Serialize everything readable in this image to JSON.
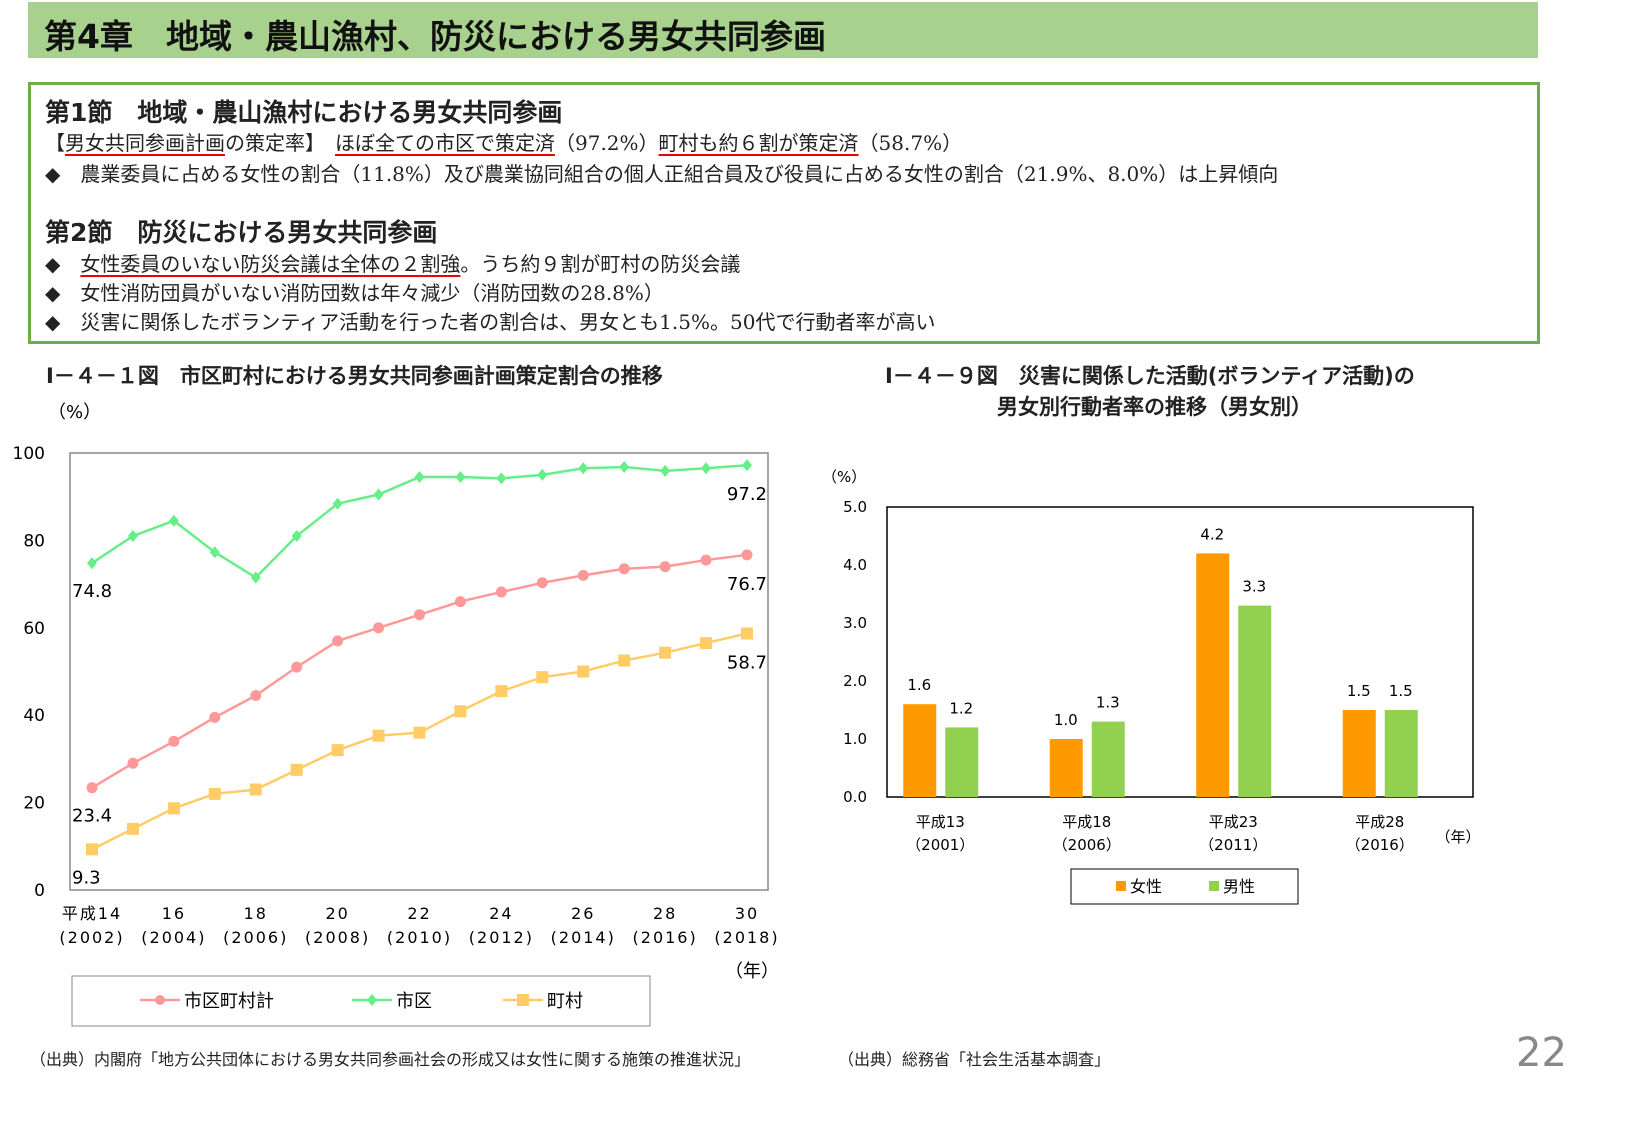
{
  "header": {
    "title": "第4章　地域・農山漁村、防災における男女共同参画"
  },
  "summary": {
    "sec1_title": "第1節　地域・農山漁村における男女共同参画",
    "sec1_line1": {
      "a": "【",
      "b": "男女共同参画計画",
      "c": "の策定率】　",
      "d": "ほぼ全ての市区で策定済",
      "e": "（97.2%）",
      "f": "町村も約６割が策定済",
      "g": "（58.7%）"
    },
    "sec1_bullet": "◆　農業委員に占める女性の割合（11.8%）及び農業協同組合の個人正組合員及び役員に占める女性の割合（21.9%、8.0%）は上昇傾向",
    "sec2_title": "第2節　防災における男女共同参画",
    "sec2_b1": {
      "a": "◆　",
      "b": "女性委員のいない防災会議は全体の２割強",
      "c": "。うち約９割が町村の防災会議"
    },
    "sec2_b2": "◆　女性消防団員がいない消防団数は年々減少（消防団数の28.8%）",
    "sec2_b3": "◆　災害に関係したボランティア活動を行った者の割合は、男女とも1.5%。50代で行動者率が高い"
  },
  "chart_data": [
    {
      "type": "line",
      "title": "Ⅰ－４－１図　市区町村における男女共同参画計画策定割合の推移",
      "ylabel": "（%）",
      "xlabel": "（年）",
      "ylim": [
        0,
        100
      ],
      "yticks": [
        0,
        20,
        40,
        60,
        80,
        100
      ],
      "x": [
        2002,
        2003,
        2004,
        2005,
        2006,
        2007,
        2008,
        2009,
        2010,
        2011,
        2012,
        2013,
        2014,
        2015,
        2016,
        2017,
        2018
      ],
      "xtick_labels": [
        [
          "平成14",
          "(2002)"
        ],
        [
          "16",
          "(2004)"
        ],
        [
          "18",
          "(2006)"
        ],
        [
          "20",
          "(2008)"
        ],
        [
          "22",
          "(2010)"
        ],
        [
          "24",
          "(2012)"
        ],
        [
          "26",
          "(2014)"
        ],
        [
          "28",
          "(2016)"
        ],
        [
          "30",
          "(2018)"
        ]
      ],
      "legend": "bottom",
      "grid": false,
      "series": [
        {
          "name": "市区町村計",
          "color": "#ff9999",
          "marker": "circle",
          "values": [
            23.4,
            29,
            34,
            39.5,
            44.5,
            51,
            57,
            60,
            63,
            66,
            68.2,
            70.3,
            72,
            73.5,
            74,
            75.5,
            76.7
          ],
          "labels": {
            "first": "23.4",
            "last": "76.7"
          }
        },
        {
          "name": "市区",
          "color": "#66ee88",
          "marker": "diamond",
          "values": [
            74.8,
            81,
            84.5,
            77.3,
            71.5,
            81,
            88.4,
            90.5,
            94.5,
            94.5,
            94.2,
            95,
            96.5,
            96.8,
            95.9,
            96.5,
            97.2
          ],
          "labels": {
            "first": "74.8",
            "last": "97.2"
          }
        },
        {
          "name": "町村",
          "color": "#ffcc66",
          "marker": "square",
          "values": [
            9.3,
            14,
            18.7,
            22,
            23,
            27.5,
            32,
            35.3,
            36,
            40.9,
            45.5,
            48.7,
            50,
            52.5,
            54.3,
            56.5,
            58.7
          ],
          "labels": {
            "first": "9.3",
            "last": "58.7"
          }
        }
      ],
      "source": "（出典）内閣府「地方公共団体における男女共同参画社会の形成又は女性に関する施策の推進状況」"
    },
    {
      "type": "bar",
      "title": "Ⅰ－４－９図　災害に関係した活動(ボランティア活動)の",
      "title2": "男女別行動者率の推移（男女別）",
      "ylabel": "（%）",
      "xlabel": "（年）",
      "ylim": [
        0,
        5
      ],
      "yticks": [
        "0.0",
        "1.0",
        "2.0",
        "3.0",
        "4.0",
        "5.0"
      ],
      "categories": [
        [
          "平成13",
          "（2001）"
        ],
        [
          "平成18",
          "（2006）"
        ],
        [
          "平成23",
          "（2011）"
        ],
        [
          "平成28",
          "（2016）"
        ]
      ],
      "legend": "bottom",
      "series": [
        {
          "name": "女性",
          "color": "#ff9900",
          "values": [
            1.6,
            1.0,
            4.2,
            1.5
          ],
          "labels": [
            "1.6",
            "1.0",
            "4.2",
            "1.5"
          ]
        },
        {
          "name": "男性",
          "color": "#92d050",
          "values": [
            1.2,
            1.3,
            3.3,
            1.5
          ],
          "labels": [
            "1.2",
            "1.3",
            "3.3",
            "1.5"
          ]
        }
      ],
      "source": "（出典）総務省「社会生活基本調査」"
    }
  ],
  "page_number": "22"
}
